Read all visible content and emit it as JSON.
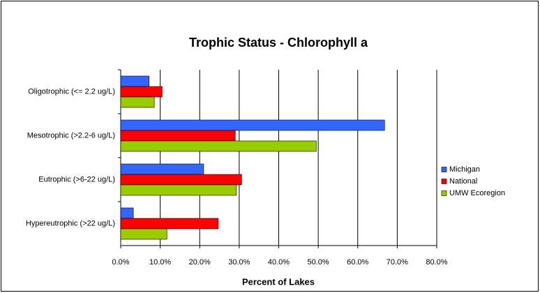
{
  "chart_data": {
    "type": "hbar",
    "title": "Trophic Status - Chlorophyll a",
    "xlabel": "Percent of Lakes",
    "categories": [
      "Oligotrophic (<= 2.2 ug/L)",
      "Mesotrophic (>2.2-6 ug/L)",
      "Eutrophic (>6-22 ug/L)",
      "Hypereutrophic (>22 ug/L)"
    ],
    "series": [
      {
        "name": "Michigan",
        "color": "#3366ff",
        "values": [
          7.2,
          66.8,
          21.0,
          3.2
        ]
      },
      {
        "name": "National",
        "color": "#ff0000",
        "values": [
          10.5,
          29.0,
          30.6,
          24.7
        ]
      },
      {
        "name": "UMW Ecoregion",
        "color": "#99cc00",
        "values": [
          8.5,
          49.5,
          29.3,
          11.7
        ]
      }
    ],
    "xlim": [
      0,
      80
    ],
    "xticks": [
      {
        "value": 0,
        "label": "0.0%"
      },
      {
        "value": 10,
        "label": "10.0%"
      },
      {
        "value": 20,
        "label": "20.0%"
      },
      {
        "value": 30,
        "label": "30.0%"
      },
      {
        "value": 40,
        "label": "40.0%"
      },
      {
        "value": 50,
        "label": "50.0%"
      },
      {
        "value": 60,
        "label": "60.0%"
      },
      {
        "value": 70,
        "label": "70.0%"
      },
      {
        "value": 80,
        "label": "80.0%"
      }
    ],
    "grid": true,
    "legend": "right"
  }
}
